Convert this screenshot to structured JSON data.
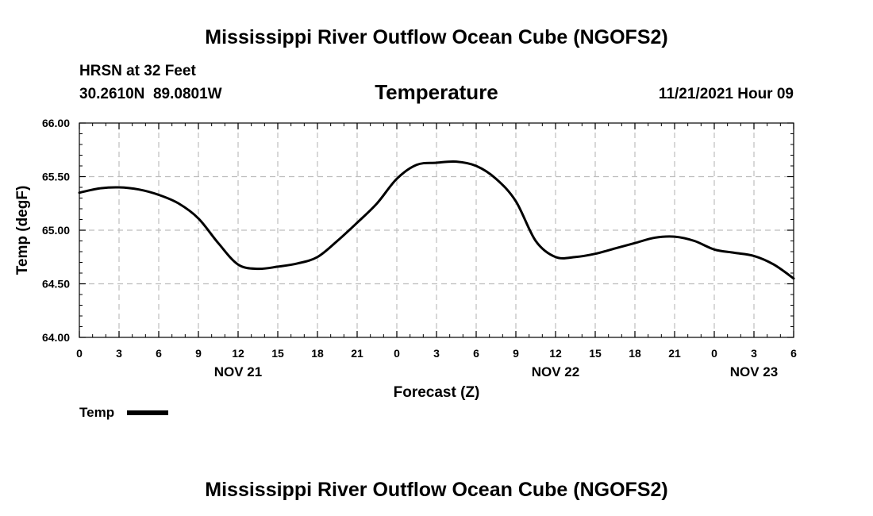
{
  "header": {
    "main_title": "Mississippi River Outflow Ocean Cube (NGOFS2)",
    "station_line": "HRSN at 32 Feet",
    "coords": "30.2610N  89.0801W",
    "datetime": "11/21/2021 Hour 09",
    "footer_title": "Mississippi River Outflow Ocean Cube (NGOFS2)"
  },
  "colors": {
    "line": "#000000",
    "grid": "#bdbdbd",
    "background": "#ffffff"
  },
  "chart_data": {
    "type": "line",
    "title": "Temperature",
    "xlabel": "Forecast (Z)",
    "ylabel": "Temp (degF)",
    "xlim": [
      0,
      54
    ],
    "ylim": [
      64.0,
      66.0
    ],
    "x_tick_values": [
      0,
      3,
      6,
      9,
      12,
      15,
      18,
      21,
      24,
      27,
      30,
      33,
      36,
      39,
      42,
      45,
      48,
      51,
      54
    ],
    "x_tick_labels": [
      "0",
      "3",
      "6",
      "9",
      "12",
      "15",
      "18",
      "21",
      "0",
      "3",
      "6",
      "9",
      "12",
      "15",
      "18",
      "21",
      "0",
      "3",
      "6"
    ],
    "y_tick_values": [
      64.0,
      64.5,
      65.0,
      65.5,
      66.0
    ],
    "y_tick_labels": [
      "64.00",
      "64.50",
      "65.00",
      "65.50",
      "66.00"
    ],
    "day_labels": [
      {
        "x": 12,
        "label": "NOV 21"
      },
      {
        "x": 36,
        "label": "NOV 22"
      },
      {
        "x": 51,
        "label": "NOV 23"
      }
    ],
    "grid": true,
    "legend": {
      "position": "bottom-left",
      "label": "Temp"
    },
    "series": [
      {
        "name": "Temp",
        "x": [
          0,
          1.5,
          3,
          4.5,
          6,
          7.5,
          9,
          10.5,
          12,
          13.5,
          15,
          16.5,
          18,
          19.5,
          21,
          22.5,
          24,
          25.5,
          27,
          28.5,
          30,
          31.5,
          33,
          34.5,
          36,
          37.5,
          39,
          40.5,
          42,
          43.5,
          45,
          46.5,
          48,
          49.5,
          51,
          52.5,
          54
        ],
        "y": [
          65.35,
          65.39,
          65.4,
          65.38,
          65.33,
          65.25,
          65.11,
          64.88,
          64.68,
          64.64,
          64.66,
          64.69,
          64.75,
          64.9,
          65.07,
          65.25,
          65.48,
          65.61,
          65.63,
          65.64,
          65.6,
          65.48,
          65.27,
          64.9,
          64.75,
          64.75,
          64.78,
          64.83,
          64.88,
          64.93,
          64.94,
          64.9,
          64.82,
          64.79,
          64.76,
          64.68,
          64.55
        ]
      }
    ]
  }
}
